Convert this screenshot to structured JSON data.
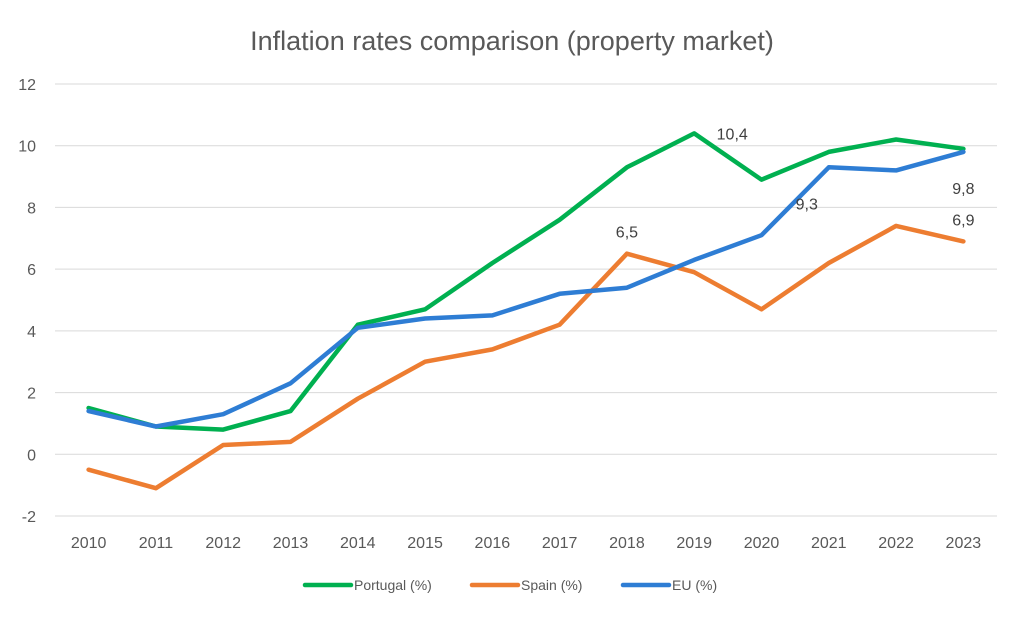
{
  "chart_data": {
    "type": "line",
    "title": "Inflation rates comparison (property market)",
    "xlabel": "",
    "ylabel": "",
    "categories": [
      "2010",
      "2011",
      "2012",
      "2013",
      "2014",
      "2015",
      "2016",
      "2017",
      "2018",
      "2019",
      "2020",
      "2021",
      "2022",
      "2023"
    ],
    "ylim": [
      -2,
      12
    ],
    "yticks": [
      -2,
      0,
      2,
      4,
      6,
      8,
      10,
      12
    ],
    "ytick_labels": [
      "-2",
      "0",
      "2",
      "4",
      "6",
      "8",
      "10",
      "12"
    ],
    "grid": true,
    "legend_position": "bottom",
    "series": [
      {
        "name": "Portugal (%)",
        "color": "#00b050",
        "values": [
          1.5,
          0.9,
          0.8,
          1.4,
          4.2,
          4.7,
          6.2,
          7.6,
          9.3,
          10.4,
          8.9,
          9.8,
          10.2,
          9.9
        ]
      },
      {
        "name": "Spain (%)",
        "color": "#ed7d31",
        "values": [
          -0.5,
          -1.1,
          0.3,
          0.4,
          1.8,
          3.0,
          3.4,
          4.2,
          6.5,
          5.9,
          4.7,
          6.2,
          7.4,
          6.9
        ]
      },
      {
        "name": "EU (%)",
        "color": "#2e7dd4",
        "values": [
          1.4,
          0.9,
          1.3,
          2.3,
          4.1,
          4.4,
          4.5,
          5.2,
          5.4,
          6.3,
          7.1,
          9.3,
          9.2,
          9.8
        ]
      }
    ],
    "annotations": [
      {
        "text": "10,4",
        "series": "Portugal (%)",
        "category": "2019",
        "value": 10.4
      },
      {
        "text": "6,5",
        "series": "Spain (%)",
        "category": "2018",
        "value": 6.5
      },
      {
        "text": "9,3",
        "series": "EU (%)",
        "category": "2021",
        "value": 9.3
      },
      {
        "text": "9,8",
        "series": "EU (%)",
        "category": "2023",
        "value": 9.8
      },
      {
        "text": "6,9",
        "series": "Spain (%)",
        "category": "2023",
        "value": 6.9
      }
    ]
  }
}
